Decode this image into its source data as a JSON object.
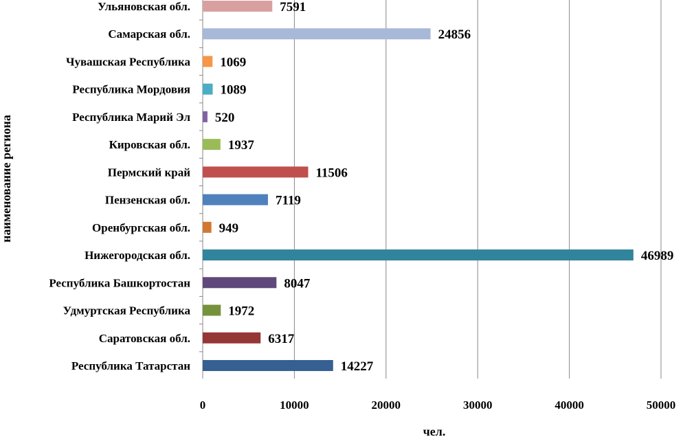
{
  "chart_data": {
    "type": "bar",
    "orientation": "horizontal",
    "xlabel": "чел.",
    "ylabel": "наименование региона",
    "xlim": [
      0,
      50000
    ],
    "xticks": [
      0,
      10000,
      20000,
      30000,
      40000,
      50000
    ],
    "grid": "vertical",
    "categories": [
      "Ульяновская обл.",
      "Самарская обл.",
      "Чувашская Республика",
      "Республика Мордовия",
      "Республика Марий Эл",
      "Кировская обл.",
      "Пермский край",
      "Пензенская обл.",
      "Оренбургская обл.",
      "Нижегородская обл.",
      "Республика Башкортостан",
      "Удмуртская Республика",
      "Саратовская обл.",
      "Республика Татарстан"
    ],
    "values": [
      7591,
      24856,
      1069,
      1089,
      520,
      1937,
      11506,
      7119,
      949,
      46989,
      8047,
      1972,
      6317,
      14227
    ],
    "colors": [
      "#d9a0a0",
      "#a7b8d9",
      "#f79646",
      "#4bacc6",
      "#8064a2",
      "#9bbb59",
      "#c0504d",
      "#4f81bd",
      "#d2772f",
      "#31849b",
      "#5f497a",
      "#76923c",
      "#953735",
      "#366092"
    ]
  }
}
